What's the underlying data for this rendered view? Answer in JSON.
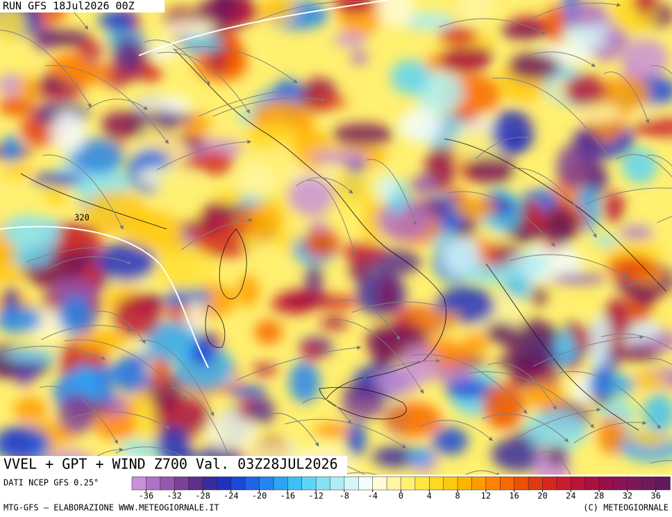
{
  "header": {
    "run": "RUN GFS 18Jul2026 00Z"
  },
  "map": {
    "contour_label": "320"
  },
  "caption": {
    "title": "VVEL + GPT + WIND Z700 Val. 03Z28JUL2026",
    "source": "DATI NCEP GFS 0.25°"
  },
  "colorbar": {
    "range": [
      -38,
      38
    ],
    "ticks": [
      -36,
      -32,
      -28,
      -24,
      -20,
      -16,
      -12,
      -8,
      -4,
      0,
      4,
      8,
      12,
      16,
      20,
      24,
      28,
      32,
      36
    ],
    "colors": [
      "#c990d8",
      "#b072c8",
      "#9657b0",
      "#7d3f98",
      "#5e2f8c",
      "#3a2ba0",
      "#2230c0",
      "#1a48d8",
      "#1f66e6",
      "#2585ee",
      "#2ea4f2",
      "#3fc0f4",
      "#5ed4f4",
      "#84e2f4",
      "#aeedf6",
      "#d6f7fa",
      "#f4fdfd",
      "#fffbd4",
      "#fff6a0",
      "#fff070",
      "#ffe640",
      "#ffd820",
      "#ffc810",
      "#ffb400",
      "#ff9c00",
      "#ff8200",
      "#f86800",
      "#ec5000",
      "#e03a10",
      "#d42820",
      "#c81c30",
      "#b81438",
      "#a81040",
      "#981048",
      "#881454",
      "#7c1858",
      "#70185c",
      "#64185c"
    ]
  },
  "footer": {
    "left": "MTG-GFS — ELABORAZIONE WWW.METEOGIORNALE.IT",
    "right": "(C) METEOGIORNALE"
  }
}
